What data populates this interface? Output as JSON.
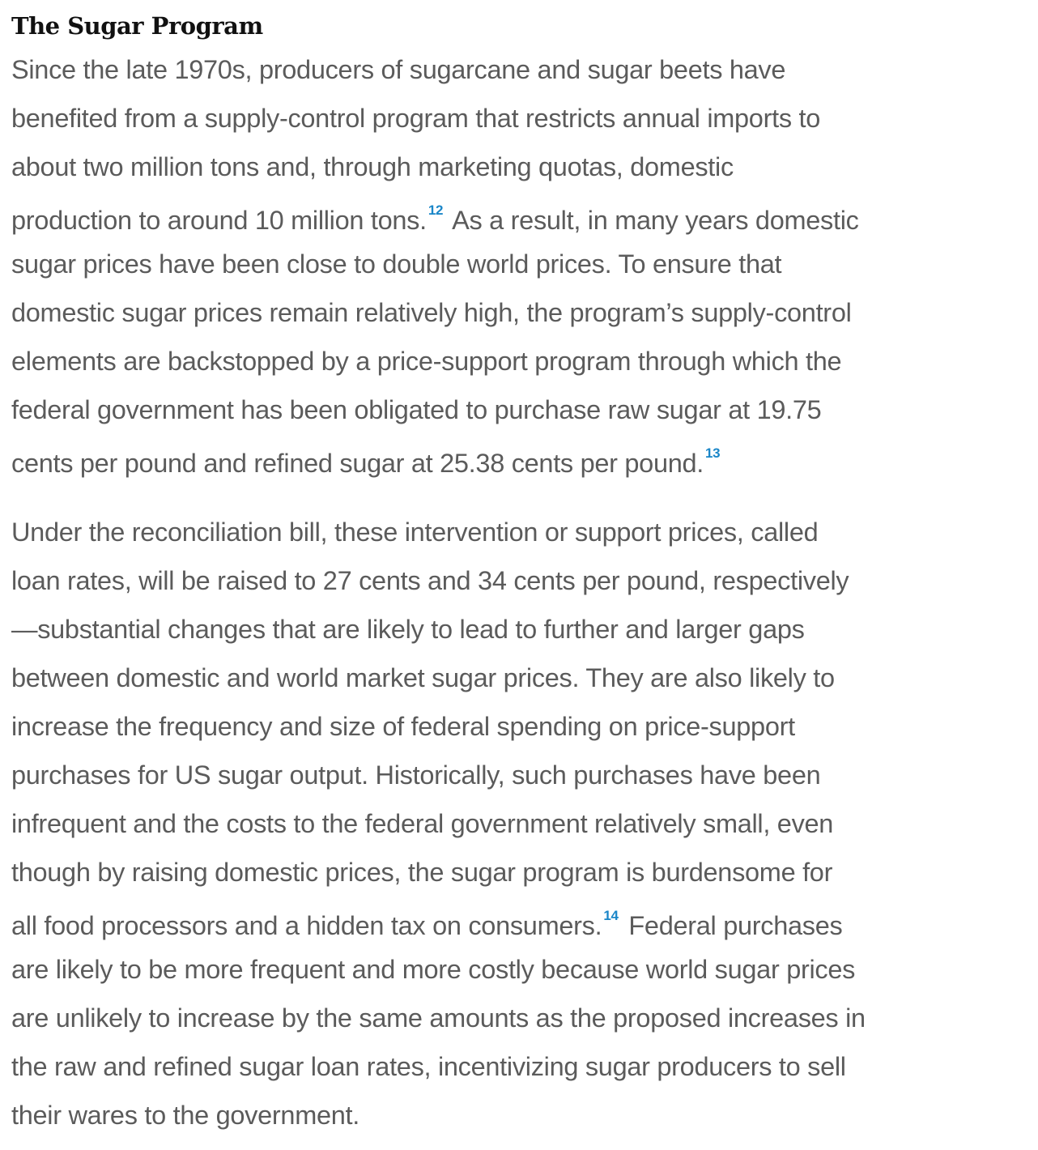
{
  "heading": "The Sugar Program",
  "paragraph1": {
    "lines": [
      "Since the late 1970s, producers of sugarcane and sugar beets have",
      "benefited from a supply-control program that restricts annual imports to",
      "about two million tons and, through marketing quotas, domestic",
      {
        "pre": "production to around 10 million tons.",
        "fn": "12",
        "post": " As a result, in many years domestic"
      },
      "sugar prices have been close to double world prices. To ensure that",
      "domestic sugar prices remain relatively high, the program’s supply-control",
      "elements are backstopped by a price-support program through which the",
      "federal government has been obligated to purchase raw sugar at 19.75",
      {
        "pre": "cents per pound and refined sugar at 25.38 cents per pound.",
        "fn": "13",
        "post": ""
      }
    ]
  },
  "paragraph2": {
    "lines": [
      "Under the reconciliation bill, these intervention or support prices, called",
      "loan rates, will be raised to 27 cents and 34 cents per pound, respectively",
      "—substantial changes that are likely to lead to further and larger gaps",
      "between domestic and world market sugar prices. They are also likely to",
      "increase the frequency and size of federal spending on price-support",
      "purchases for US sugar output. Historically, such purchases have been",
      "infrequent and the costs to the federal government relatively small, even",
      "though by raising domestic prices, the sugar program is burdensome for",
      {
        "pre": "all food processors and a hidden tax on consumers.",
        "fn": "14",
        "post": " Federal purchases"
      },
      "are likely to be more frequent and more costly because world sugar prices",
      "are unlikely to increase by the same amounts as the proposed increases in",
      "the raw and refined sugar loan rates, incentivizing sugar producers to sell",
      "their wares to the government."
    ]
  },
  "colors": {
    "text": "#5b5b5b",
    "footnote": "#1a86c8",
    "heading": "#111111"
  }
}
